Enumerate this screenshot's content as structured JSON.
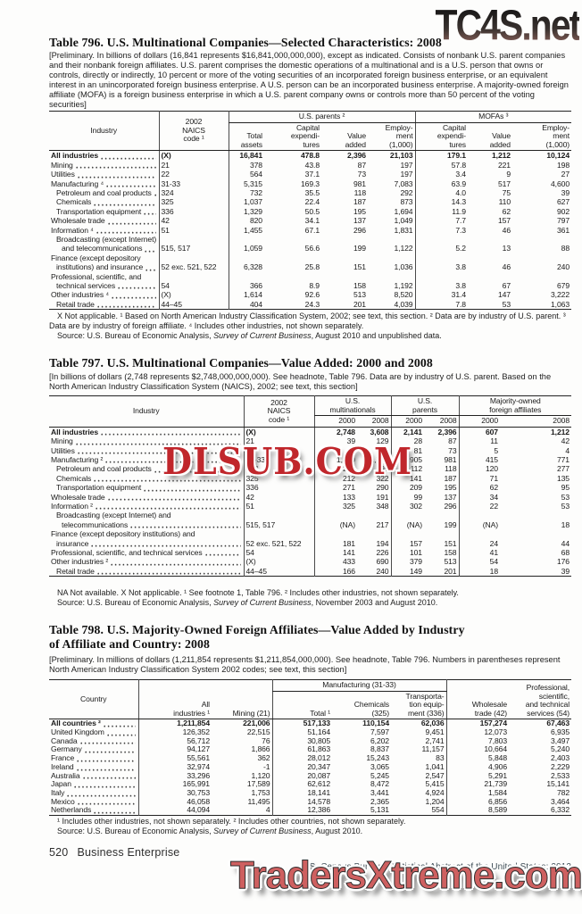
{
  "watermarks": {
    "top_right": "TC4S.net",
    "middle": "DLSUB.COM",
    "bottom": "TradersXtreme.com",
    "colors": {
      "top_dark": "#141414",
      "top_rose": "#9a6a62",
      "middle_red": "#c0262b",
      "bottom_pink": "#ce6060"
    }
  },
  "page": {
    "footer_number": "520",
    "footer_section": "Business Enterprise",
    "census_line": "U.S. Census Bureau, Statistical Abstract of the United States: 2012"
  },
  "t796": {
    "title": "Table 796. U.S. Multinational Companies—Selected Characteristics: 2008",
    "headnote": "[Preliminary. In billions of dollars (16,841 represents $16,841,000,000,000), except as indicated. Consists of nonbank U.S. parent companies and their nonbank foreign affiliates. U.S. parent comprises the domestic operations of a multinational and is a U.S. person that owns or controls, directly or indirectly, 10 percent or more of the voting securities of an incorporated foreign business enterprise, or an equivalent interest in an unincorporated foreign business enterprise. A U.S. person can be an incorporated business enterprise. A majority-owned foreign affiliate (MOFA) is a foreign business enterprise in which a U.S. parent company owns or controls more than 50 percent of the voting securities]",
    "h": {
      "industry": "Industry",
      "naics": "2002\nNAICS\ncode ¹",
      "parents": "U.S. parents ²",
      "mofas": "MOFAs ³",
      "sub": [
        "Total\nassets",
        "Capital\nexpendi-\ntures",
        "Value\nadded",
        "Employ-\nment\n(1,000)",
        "Capital\nexpendi-\ntures",
        "Value\nadded",
        "Employ-\nment\n(1,000)"
      ]
    },
    "rows": [
      {
        "t": "All industries",
        "b": 1,
        "n": "(X)",
        "v": [
          "16,841",
          "478.8",
          "2,396",
          "21,103",
          "179.1",
          "1,212",
          "10,124"
        ]
      },
      {
        "t": "Mining",
        "n": "21",
        "v": [
          "378",
          "43.8",
          "87",
          "197",
          "57.8",
          "221",
          "198"
        ]
      },
      {
        "t": "Utilities",
        "n": "22",
        "v": [
          "564",
          "37.1",
          "73",
          "197",
          "3.4",
          "9",
          "27"
        ]
      },
      {
        "t": "Manufacturing ⁴",
        "n": "31-33",
        "v": [
          "5,315",
          "169.3",
          "981",
          "7,083",
          "63.9",
          "517",
          "4,600"
        ]
      },
      {
        "t": "Petroleum and coal products",
        "i": 1,
        "n": "324",
        "v": [
          "732",
          "35.5",
          "118",
          "292",
          "4.0",
          "75",
          "39"
        ]
      },
      {
        "t": "Chemicals",
        "i": 1,
        "n": "325",
        "v": [
          "1,037",
          "22.4",
          "187",
          "873",
          "14.3",
          "110",
          "627"
        ]
      },
      {
        "t": "Transportation equipment",
        "i": 1,
        "n": "336",
        "v": [
          "1,329",
          "50.5",
          "195",
          "1,694",
          "11.9",
          "62",
          "902"
        ]
      },
      {
        "t": "Wholesale trade",
        "n": "42",
        "v": [
          "820",
          "34.1",
          "137",
          "1,049",
          "7.7",
          "157",
          "797"
        ]
      },
      {
        "t": "Information ⁴",
        "n": "51",
        "v": [
          "1,455",
          "67.1",
          "296",
          "1,831",
          "7.3",
          "46",
          "361"
        ]
      },
      {
        "t1": "Broadcasting (except Internet)",
        "i1": 1,
        "t": "and telecommunications",
        "i": 2,
        "n": "515, 517",
        "v": [
          "1,059",
          "56.6",
          "199",
          "1,122",
          "5.2",
          "13",
          "88"
        ]
      },
      {
        "t1": "Finance (except depository",
        "i1": 0,
        "t": "institutions) and insurance",
        "i": 1,
        "n": "52 exc. 521, 522",
        "v": [
          "6,328",
          "25.8",
          "151",
          "1,036",
          "3.8",
          "46",
          "240"
        ]
      },
      {
        "t1": "Professional, scientific, and",
        "i1": 0,
        "t": "technical services",
        "i": 1,
        "n": "54",
        "v": [
          "366",
          "8.9",
          "158",
          "1,192",
          "3.8",
          "67",
          "679"
        ]
      },
      {
        "t": "Other industries ⁴",
        "n": "(X)",
        "v": [
          "1,614",
          "92.6",
          "513",
          "8,520",
          "31.4",
          "147",
          "3,222"
        ]
      },
      {
        "t": "Retail trade",
        "i": 1,
        "n": "44–45",
        "v": [
          "404",
          "24.3",
          "201",
          "4,039",
          "7.8",
          "53",
          "1,063"
        ]
      }
    ],
    "footnote": "X Not applicable. ¹ Based on North American Industry Classification System, 2002; see text, this section. ² Data are by industry of U.S. parent. ³ Data are by industry of foreign affiliate. ⁴ Includes other industries, not shown separately.",
    "src_pre": "Source: U.S. Bureau of Economic Analysis, ",
    "src_it": "Survey of Current Business",
    "src_post": ", August 2010 and unpublished data."
  },
  "t797": {
    "title": "Table 797. U.S. Multinational Companies—Value Added: 2000 and 2008",
    "headnote": "[In billions of dollars (2,748 represents $2,748,000,000,000). See headnote, Table 796. Data are by industry of U.S. parent. Based on the North American Industry Classification System (NAICS), 2002; see text, this section]",
    "h": {
      "industry": "Industry",
      "naics": "2002\nNAICS\ncode ¹",
      "groups": [
        "U.S.\nmultinationals",
        "U.S.\nparents",
        "Majority-owned\nforeign affiliates"
      ],
      "years": [
        "2000",
        "2008"
      ]
    },
    "rows": [
      {
        "t": "All industries",
        "b": 1,
        "n": "(X)",
        "v": [
          "2,748",
          "3,608",
          "2,141",
          "2,396",
          "607",
          "1,212"
        ]
      },
      {
        "t": "Mining",
        "n": "21",
        "v": [
          "39",
          "129",
          "28",
          "87",
          "11",
          "42"
        ]
      },
      {
        "t": "Utilities",
        "n": "22",
        "v": [
          "86",
          "77",
          "81",
          "73",
          "5",
          "4"
        ]
      },
      {
        "t": "Manufacturing ²",
        "n": "31-33",
        "v": [
          "1,320",
          "1,752",
          "905",
          "981",
          "415",
          "771"
        ]
      },
      {
        "t": "Petroleum and coal products",
        "i": 1,
        "n": "324",
        "v": [
          "232",
          "395",
          "112",
          "118",
          "120",
          "277"
        ]
      },
      {
        "t": "Chemicals",
        "i": 1,
        "n": "325",
        "v": [
          "212",
          "322",
          "141",
          "187",
          "71",
          "135"
        ]
      },
      {
        "t": "Transportation equipment",
        "i": 1,
        "n": "336",
        "v": [
          "271",
          "290",
          "209",
          "195",
          "62",
          "95"
        ]
      },
      {
        "t": "Wholesale trade",
        "n": "42",
        "v": [
          "133",
          "191",
          "99",
          "137",
          "34",
          "53"
        ]
      },
      {
        "t": "Information ²",
        "n": "51",
        "v": [
          "325",
          "348",
          "302",
          "296",
          "22",
          "53"
        ]
      },
      {
        "t1": "Broadcasting (except Internet) and",
        "i1": 1,
        "t": "telecommunications",
        "i": 2,
        "n": "515, 517",
        "v": [
          "(NA)",
          "217",
          "(NA)",
          "199",
          "(NA)",
          "18"
        ]
      },
      {
        "t1": "Finance (except depository institutions) and",
        "i1": 0,
        "t": "insurance",
        "i": 1,
        "n": "52 exc. 521, 522",
        "v": [
          "181",
          "194",
          "157",
          "151",
          "24",
          "44"
        ]
      },
      {
        "t": "Professional, scientific, and technical services",
        "n": "54",
        "v": [
          "141",
          "226",
          "101",
          "158",
          "41",
          "68"
        ]
      },
      {
        "t": "Other industries ²",
        "n": "(X)",
        "v": [
          "433",
          "690",
          "379",
          "513",
          "54",
          "176"
        ]
      },
      {
        "t": "Retail trade",
        "i": 1,
        "n": "44–45",
        "v": [
          "166",
          "240",
          "149",
          "201",
          "18",
          "39"
        ]
      }
    ],
    "footnote": "NA Not available. X Not applicable. ¹ See footnote 1, Table 796. ² Includes other industries, not shown separately.",
    "src_pre": "Source: U.S. Bureau of Economic Analysis, ",
    "src_it": "Survey of Current Business",
    "src_post": ", November 2003 and August 2010."
  },
  "t798": {
    "title": "Table 798. U.S. Majority-Owned Foreign Affiliates—Value Added by Industry\nof Affiliate and Country: 2008",
    "headnote": "[Preliminary. In millions of dollars (1,211,854 represents $1,211,854,000,000). See headnote, Table 796. Numbers in parentheses represent North American Industry Classification System 2002 codes; see text, this section]",
    "h": {
      "country": "Country",
      "all": "All\nindustries ¹",
      "mining": "Mining (21)",
      "mfg": "Manufacturing (31-33)",
      "mfg_sub": [
        "Total ¹",
        "Chemicals\n(325)",
        "Transporta-\ntion equip-\nment (336)"
      ],
      "wholesale": "Wholesale\ntrade (42)",
      "prof": "Professional,\nscientific,\nand technical\nservices (54)"
    },
    "rows": [
      {
        "t": "All countries ²",
        "b": 1,
        "v": [
          "1,211,854",
          "221,006",
          "517,133",
          "110,154",
          "62,036",
          "157,274",
          "67,463"
        ]
      },
      {
        "t": "United Kingdom",
        "v": [
          "126,352",
          "22,515",
          "51,164",
          "7,597",
          "9,451",
          "12,073",
          "6,935"
        ]
      },
      {
        "t": "Canada",
        "v": [
          "56,712",
          "76",
          "30,805",
          "6,202",
          "2,741",
          "7,803",
          "3,497"
        ]
      },
      {
        "t": "Germany",
        "v": [
          "94,127",
          "1,866",
          "61,863",
          "8,837",
          "11,157",
          "10,664",
          "5,240"
        ]
      },
      {
        "t": "France",
        "v": [
          "55,561",
          "362",
          "28,012",
          "15,243",
          "83",
          "5,848",
          "2,403"
        ]
      },
      {
        "t": "Ireland",
        "v": [
          "32,974",
          "-1",
          "20,347",
          "3,065",
          "1,041",
          "4,906",
          "2,229"
        ]
      },
      {
        "t": "Australia",
        "v": [
          "33,296",
          "1,120",
          "20,087",
          "5,245",
          "2,547",
          "5,291",
          "2,533"
        ]
      },
      {
        "t": "Japan",
        "v": [
          "165,991",
          "17,589",
          "62,612",
          "8,472",
          "5,415",
          "21,739",
          "15,141"
        ]
      },
      {
        "t": "Italy",
        "v": [
          "30,753",
          "1,753",
          "18,141",
          "3,441",
          "4,924",
          "1,584",
          "782"
        ]
      },
      {
        "t": "Mexico",
        "v": [
          "46,058",
          "11,495",
          "14,578",
          "2,365",
          "1,204",
          "6,856",
          "3,464"
        ]
      },
      {
        "t": "Netherlands",
        "v": [
          "44,094",
          "4",
          "12,386",
          "5,131",
          "554",
          "8,589",
          "6,332"
        ]
      }
    ],
    "footnote": "¹ Includes other industries, not shown separately. ² Includes other countries, not shown separately.",
    "src_pre": "Source: U.S. Bureau of Economic Analysis, ",
    "src_it": "Survey of Current Business",
    "src_post": ", August 2010."
  }
}
